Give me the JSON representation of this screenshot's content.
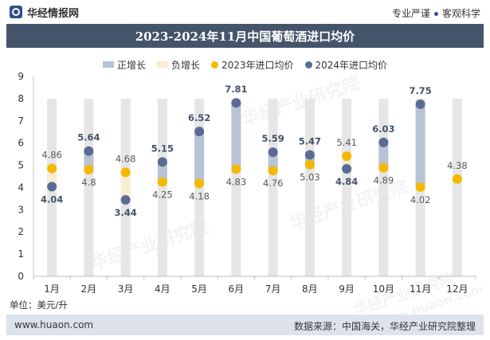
{
  "header": {
    "brand": "华经情报网",
    "tagline_left": "专业严谨",
    "tagline_right": "客观科学"
  },
  "chart_data": {
    "type": "floating-bar-with-dots",
    "title": "2023-2024年11月中国葡萄酒进口均价",
    "categories": [
      "1月",
      "2月",
      "3月",
      "4月",
      "5月",
      "6月",
      "7月",
      "8月",
      "9月",
      "10月",
      "11月",
      "12月"
    ],
    "series": [
      {
        "name": "正增长",
        "kind": "range",
        "color": "#b8c3d6"
      },
      {
        "name": "负增长",
        "kind": "range",
        "color": "#f7edd2"
      },
      {
        "name": "2023年进口均价",
        "kind": "point",
        "color": "#f5b800",
        "values": [
          4.86,
          4.8,
          4.68,
          4.25,
          4.18,
          4.83,
          4.76,
          5.03,
          5.41,
          4.89,
          4.02,
          4.38
        ]
      },
      {
        "name": "2024年进口均价",
        "kind": "point",
        "color": "#5a6c93",
        "values": [
          4.04,
          5.64,
          3.44,
          5.15,
          6.52,
          7.81,
          5.59,
          5.47,
          4.84,
          6.03,
          7.75,
          null
        ]
      }
    ],
    "ylim": [
      0,
      9
    ],
    "yticks": [
      "0",
      "1",
      "2",
      "3",
      "4",
      "5",
      "6",
      "7",
      "8",
      "9"
    ],
    "background_bar_top": 8,
    "grid": false
  },
  "colors": {
    "bg_column": "#e6e6e6",
    "label_2023": "#595959",
    "label_2024": "#44546a"
  },
  "unit_label": "单位：美元/升",
  "footer": {
    "website": "www.huaon.com",
    "source": "数据来源：中国海关，华经产业研究院整理"
  },
  "watermark": "华经产业研究院",
  "watermark_url": "www.huaon.com"
}
